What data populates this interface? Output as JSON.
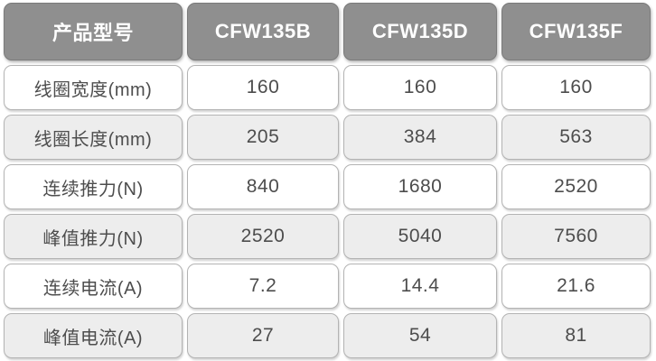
{
  "table": {
    "header_cells": [
      "产品型号",
      "CFW135B",
      "CFW135D",
      "CFW135F"
    ],
    "rows": [
      {
        "label": "线圈宽度(mm)",
        "values": [
          "160",
          "160",
          "160"
        ]
      },
      {
        "label": "线圈长度(mm)",
        "values": [
          "205",
          "384",
          "563"
        ]
      },
      {
        "label": "连续推力(N)",
        "values": [
          "840",
          "1680",
          "2520"
        ]
      },
      {
        "label": "峰值推力(N)",
        "values": [
          "2520",
          "5040",
          "7560"
        ]
      },
      {
        "label": "连续电流(A)",
        "values": [
          "7.2",
          "14.4",
          "21.6"
        ]
      },
      {
        "label": "峰值电流(A)",
        "values": [
          "27",
          "54",
          "81"
        ]
      }
    ]
  },
  "colors": {
    "header_bg": "#8f8f8f",
    "header_text": "#ffffff",
    "row_bg": "#ffffff",
    "row_alt_bg": "#ededed",
    "cell_text": "#4d4d4d",
    "cell_border": "#b3b3b3"
  },
  "chart_data": {
    "type": "table",
    "title": "",
    "columns": [
      "产品型号",
      "CFW135B",
      "CFW135D",
      "CFW135F"
    ],
    "rows": [
      [
        "线圈宽度(mm)",
        160,
        160,
        160
      ],
      [
        "线圈长度(mm)",
        205,
        384,
        563
      ],
      [
        "连续推力(N)",
        840,
        1680,
        2520
      ],
      [
        "峰值推力(N)",
        2520,
        5040,
        7560
      ],
      [
        "连续电流(A)",
        7.2,
        14.4,
        21.6
      ],
      [
        "峰值电流(A)",
        27,
        54,
        81
      ]
    ],
    "layout_hints": {
      "alternating_row_shading": true,
      "header_style": "gray-filled-rounded-cells",
      "cell_style": "rounded-rect-cards-with-gaps"
    }
  }
}
